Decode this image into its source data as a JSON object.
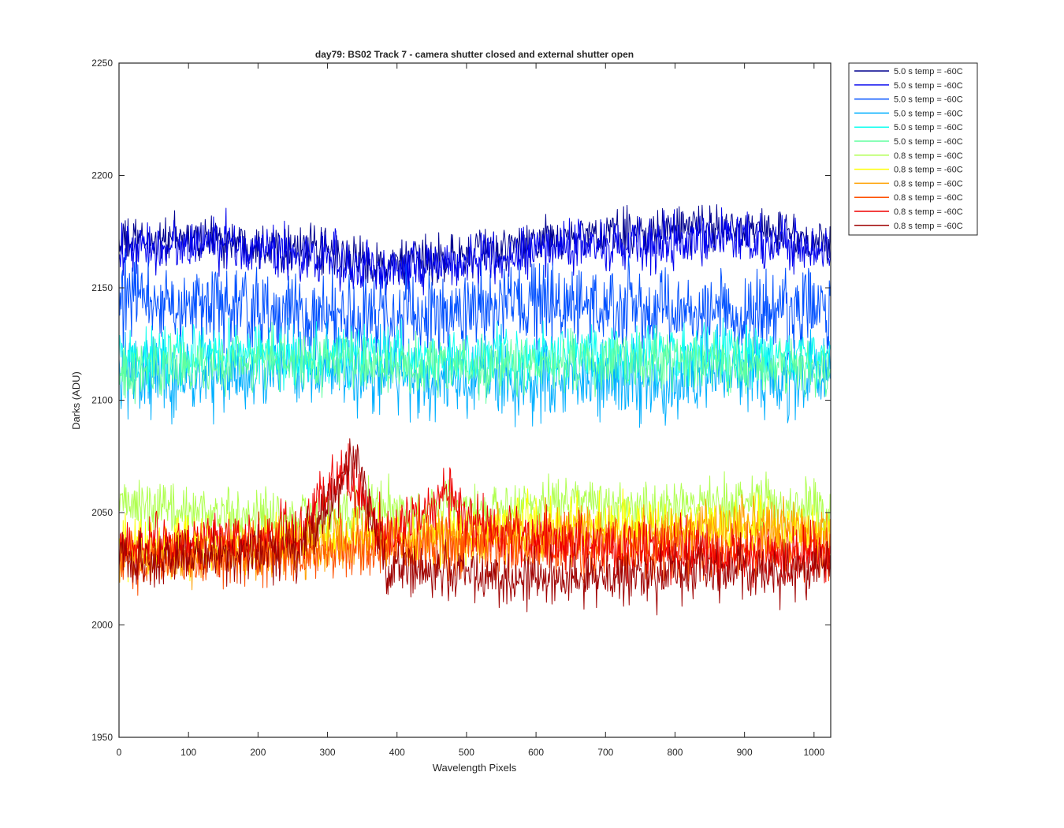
{
  "chart_data": {
    "type": "line",
    "title": "day79: BS02  Track 7 - camera shutter closed and external shutter open",
    "xlabel": "Wavelength Pixels",
    "ylabel": "Darks (ADU)",
    "xlim": [
      0,
      1024
    ],
    "ylim": [
      1950,
      2250
    ],
    "x_ticks": [
      0,
      100,
      200,
      300,
      400,
      500,
      600,
      700,
      800,
      900,
      1000
    ],
    "y_ticks": [
      1950,
      2000,
      2050,
      2100,
      2150,
      2200,
      2250
    ],
    "grid": false,
    "legend_position": "outside-top-right",
    "series": [
      {
        "name": "5.0 s temp = -60C",
        "color": "#00008f",
        "approx_mean": 2165,
        "noise": 8,
        "x_sampled": [
          0,
          128,
          256,
          384,
          512,
          640,
          768,
          896,
          1024
        ],
        "y_sampled": [
          2170,
          2172,
          2168,
          2160,
          2165,
          2172,
          2175,
          2178,
          2168
        ]
      },
      {
        "name": "5.0 s temp = -60C",
        "color": "#0000ef",
        "approx_mean": 2162,
        "noise": 9,
        "x_sampled": [
          0,
          128,
          256,
          384,
          512,
          640,
          768,
          896,
          1024
        ],
        "y_sampled": [
          2166,
          2170,
          2165,
          2158,
          2162,
          2168,
          2170,
          2172,
          2165
        ]
      },
      {
        "name": "5.0 s temp = -60C",
        "color": "#0050ff",
        "approx_mean": 2140,
        "noise": 14,
        "x_sampled": [
          0,
          128,
          256,
          384,
          512,
          640,
          768,
          896,
          1024
        ],
        "y_sampled": [
          2145,
          2142,
          2138,
          2136,
          2140,
          2142,
          2140,
          2138,
          2140
        ]
      },
      {
        "name": "5.0 s temp = -60C",
        "color": "#00afff",
        "approx_mean": 2112,
        "noise": 14,
        "x_sampled": [
          0,
          128,
          256,
          384,
          512,
          640,
          768,
          896,
          1024
        ],
        "y_sampled": [
          2112,
          2110,
          2114,
          2112,
          2110,
          2108,
          2110,
          2112,
          2110
        ]
      },
      {
        "name": "5.0 s temp = -60C",
        "color": "#10ffef",
        "approx_mean": 2120,
        "noise": 10,
        "x_sampled": [
          0,
          128,
          256,
          384,
          512,
          640,
          768,
          896,
          1024
        ],
        "y_sampled": [
          2118,
          2122,
          2120,
          2120,
          2118,
          2122,
          2120,
          2120,
          2118
        ]
      },
      {
        "name": "5.0 s temp = -60C",
        "color": "#60ff9f",
        "approx_mean": 2115,
        "noise": 10,
        "x_sampled": [
          0,
          128,
          256,
          384,
          512,
          640,
          768,
          896,
          1024
        ],
        "y_sampled": [
          2112,
          2115,
          2118,
          2116,
          2114,
          2116,
          2118,
          2115,
          2114
        ]
      },
      {
        "name": "0.8 s temp = -60C",
        "color": "#afff50",
        "approx_mean": 2052,
        "noise": 9,
        "x_sampled": [
          0,
          128,
          256,
          384,
          512,
          640,
          768,
          896,
          1024
        ],
        "y_sampled": [
          2055,
          2050,
          2048,
          2052,
          2050,
          2055,
          2052,
          2055,
          2050
        ]
      },
      {
        "name": "0.8 s temp = -60C",
        "color": "#ffff00",
        "approx_mean": 2040,
        "noise": 10,
        "x_sampled": [
          0,
          128,
          256,
          384,
          512,
          640,
          768,
          896,
          1024
        ],
        "y_sampled": [
          2035,
          2035,
          2038,
          2040,
          2040,
          2045,
          2042,
          2045,
          2040
        ]
      },
      {
        "name": "0.8 s temp = -60C",
        "color": "#ffa000",
        "approx_mean": 2038,
        "noise": 10,
        "x_sampled": [
          0,
          128,
          256,
          384,
          512,
          640,
          768,
          896,
          1024
        ],
        "y_sampled": [
          2030,
          2032,
          2035,
          2038,
          2038,
          2042,
          2040,
          2045,
          2040
        ]
      },
      {
        "name": "0.8 s temp = -60C",
        "color": "#ff5000",
        "approx_mean": 2033,
        "noise": 10,
        "x_sampled": [
          0,
          128,
          256,
          384,
          512,
          640,
          768,
          896,
          1024
        ],
        "y_sampled": [
          2028,
          2030,
          2032,
          2035,
          2035,
          2035,
          2032,
          2033,
          2032
        ]
      },
      {
        "name": "0.8 s temp = -60C",
        "color": "#ef0000",
        "approx_mean": 2040,
        "noise": 10,
        "x_sampled": [
          0,
          128,
          256,
          320,
          384,
          480,
          512,
          640,
          768,
          896,
          1024
        ],
        "y_sampled": [
          2035,
          2038,
          2040,
          2070,
          2040,
          2060,
          2045,
          2035,
          2035,
          2030,
          2030
        ]
      },
      {
        "name": "0.8 s temp = -60C",
        "color": "#9f0000",
        "approx_mean": 2028,
        "noise": 10,
        "x_sampled": [
          0,
          128,
          256,
          340,
          384,
          512,
          640,
          768,
          896,
          1024
        ],
        "y_sampled": [
          2030,
          2030,
          2032,
          2075,
          2025,
          2022,
          2020,
          2022,
          2025,
          2025
        ]
      }
    ]
  }
}
